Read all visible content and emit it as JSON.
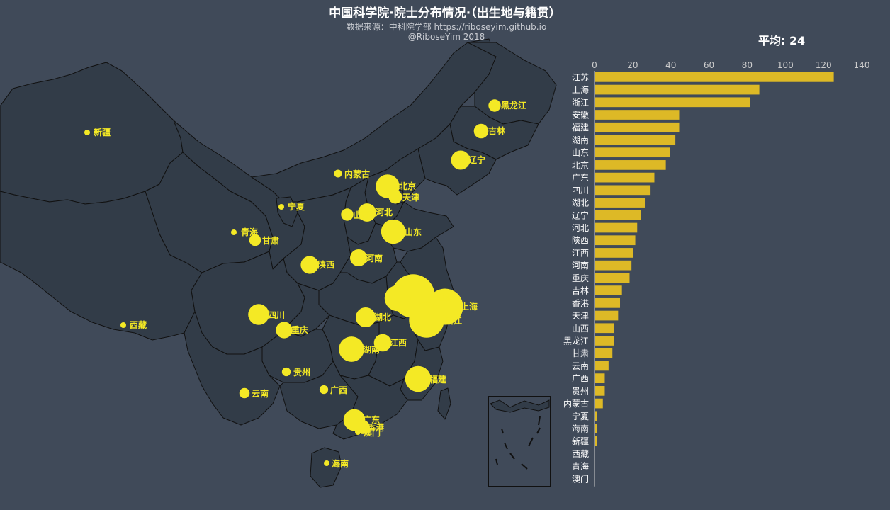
{
  "header": {
    "title": "中国科学院·院士分布情况·（出生地与籍贯）",
    "subtitle_line1": "数据来源：中科院学部 https://riboseyim.github.io",
    "subtitle_line2": "@RiboseYim  2018"
  },
  "average": {
    "label": "平均: 24",
    "value": 24
  },
  "colors": {
    "background": "#404a59",
    "land": "#323c48",
    "border": "#111111",
    "bubble": "#f4e925",
    "bar": "#ddb926",
    "axis_text": "#cccccc",
    "label_text": "#ffffff"
  },
  "chart_data": [
    {
      "type": "scatter",
      "subtype": "geo-bubble",
      "map": "china",
      "points": [
        {
          "name": "江苏",
          "value": 125
        },
        {
          "name": "上海",
          "value": 86
        },
        {
          "name": "浙江",
          "value": 81
        },
        {
          "name": "安徽",
          "value": 44
        },
        {
          "name": "福建",
          "value": 44
        },
        {
          "name": "湖南",
          "value": 42
        },
        {
          "name": "山东",
          "value": 39
        },
        {
          "name": "北京",
          "value": 37
        },
        {
          "name": "广东",
          "value": 31
        },
        {
          "name": "四川",
          "value": 29
        },
        {
          "name": "湖北",
          "value": 26
        },
        {
          "name": "辽宁",
          "value": 24
        },
        {
          "name": "河北",
          "value": 22
        },
        {
          "name": "陕西",
          "value": 21
        },
        {
          "name": "江西",
          "value": 20
        },
        {
          "name": "河南",
          "value": 19
        },
        {
          "name": "重庆",
          "value": 18
        },
        {
          "name": "吉林",
          "value": 14
        },
        {
          "name": "香港",
          "value": 13
        },
        {
          "name": "天津",
          "value": 12
        },
        {
          "name": "山西",
          "value": 10
        },
        {
          "name": "黑龙江",
          "value": 10
        },
        {
          "name": "甘肃",
          "value": 9
        },
        {
          "name": "云南",
          "value": 7
        },
        {
          "name": "广西",
          "value": 5
        },
        {
          "name": "贵州",
          "value": 5
        },
        {
          "name": "内蒙古",
          "value": 4
        },
        {
          "name": "宁夏",
          "value": 1
        },
        {
          "name": "海南",
          "value": 1
        },
        {
          "name": "新疆",
          "value": 1
        },
        {
          "name": "西藏",
          "value": 0
        },
        {
          "name": "青海",
          "value": 0
        },
        {
          "name": "澳门",
          "value": 0
        }
      ]
    },
    {
      "type": "bar",
      "orientation": "horizontal",
      "categories": [
        "江苏",
        "上海",
        "浙江",
        "安徽",
        "福建",
        "湖南",
        "山东",
        "北京",
        "广东",
        "四川",
        "湖北",
        "辽宁",
        "河北",
        "陕西",
        "江西",
        "河南",
        "重庆",
        "吉林",
        "香港",
        "天津",
        "山西",
        "黑龙江",
        "甘肃",
        "云南",
        "广西",
        "贵州",
        "内蒙古",
        "宁夏",
        "海南",
        "新疆",
        "西藏",
        "青海",
        "澳门"
      ],
      "values": [
        125,
        86,
        81,
        44,
        44,
        42,
        39,
        37,
        31,
        29,
        26,
        24,
        22,
        21,
        20,
        19,
        18,
        14,
        13,
        12,
        10,
        10,
        9,
        7,
        5,
        5,
        4,
        1,
        1,
        1,
        0,
        0,
        0
      ],
      "xlim": [
        0,
        140
      ],
      "xticks": [
        0,
        20,
        40,
        60,
        80,
        100,
        120,
        140
      ],
      "grid": false
    }
  ]
}
